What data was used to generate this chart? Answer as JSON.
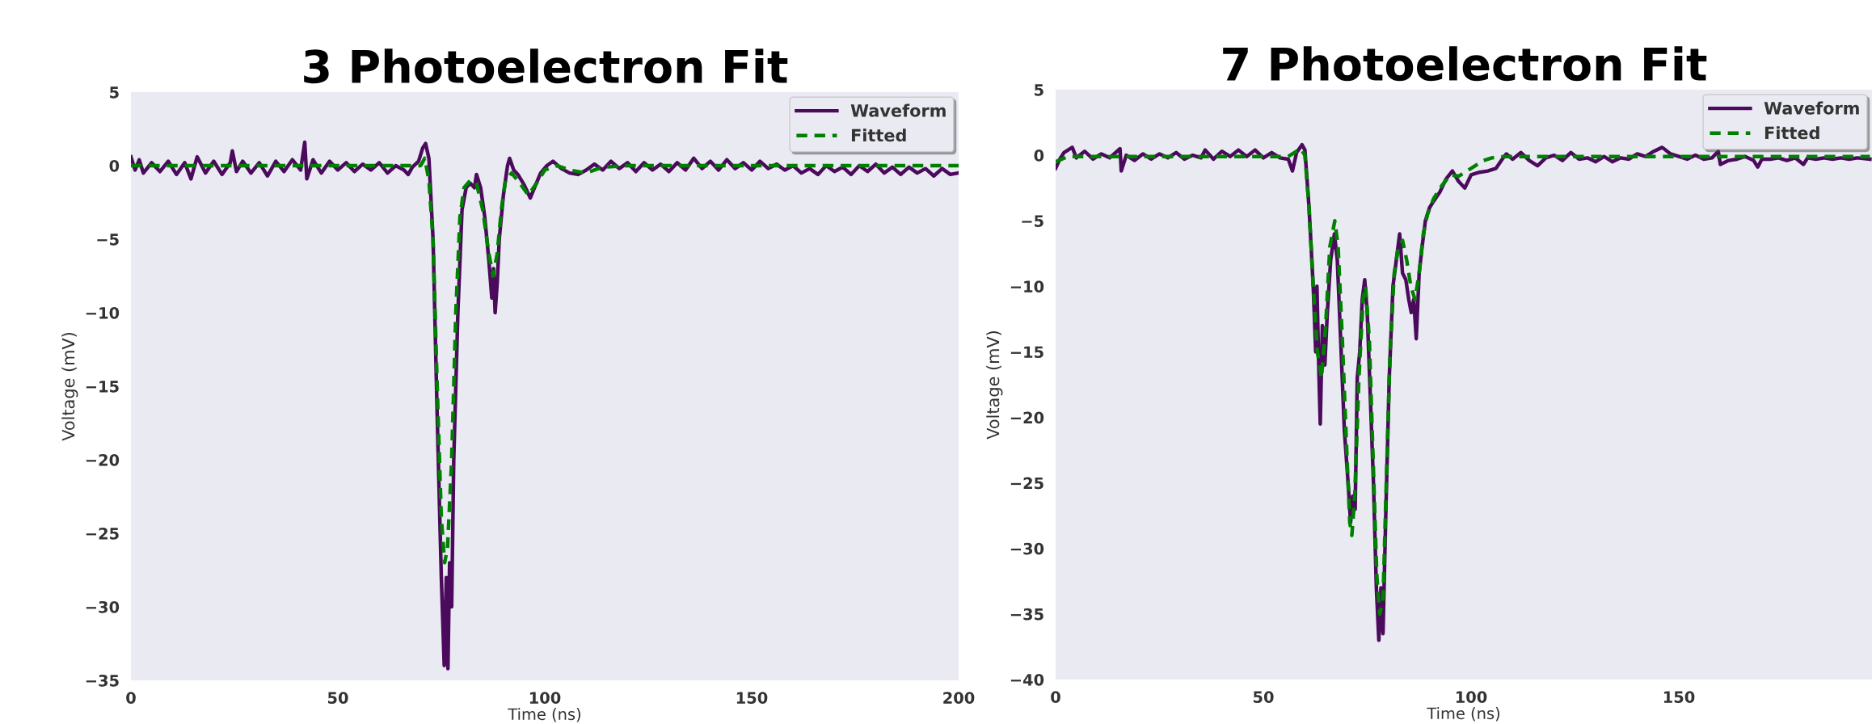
{
  "chart_data": [
    {
      "type": "line",
      "title": "3 Photoelectron Fit",
      "xlabel": "Time (ns)",
      "ylabel": "Voltage (mV)",
      "xlim": [
        0,
        200
      ],
      "ylim": [
        -35,
        5
      ],
      "xticks": [
        0,
        50,
        100,
        150,
        200
      ],
      "yticks": [
        -35,
        -30,
        -25,
        -20,
        -15,
        -10,
        -5,
        0,
        5
      ],
      "grid": false,
      "legend": "top right",
      "series": [
        {
          "name": "Waveform",
          "color": "#4b0a5c",
          "line_style": "solid",
          "x": [
            0,
            1,
            2,
            3,
            5,
            7,
            9,
            11,
            13,
            14.5,
            16,
            18,
            20,
            22,
            24,
            24.5,
            25.5,
            27,
            29,
            31,
            33,
            35,
            37,
            39,
            41,
            42,
            42.5,
            44,
            46,
            48,
            50,
            52,
            54,
            56,
            58,
            60,
            62,
            64,
            66,
            67,
            68,
            69.5,
            70.5,
            71.2,
            72,
            73,
            74,
            75,
            75.7,
            76.2,
            76.6,
            77,
            77.5,
            78,
            79,
            80,
            81,
            82,
            83,
            83.5,
            84.5,
            85.5,
            86.5,
            87.2,
            87.6,
            88,
            88.5,
            89,
            90,
            91,
            91.5,
            92.5,
            93.5,
            95,
            96.5,
            97.5,
            99,
            100.5,
            102,
            104,
            106,
            108,
            110,
            112,
            114,
            116,
            118,
            120,
            122,
            124,
            126,
            128,
            130,
            132,
            134,
            136,
            138,
            140,
            142,
            144,
            146,
            148,
            150,
            152,
            154,
            156,
            158,
            160,
            162,
            164,
            166,
            168,
            170,
            172,
            174,
            176,
            178,
            180,
            182,
            184,
            186,
            188,
            190,
            192,
            194,
            196,
            198,
            200
          ],
          "values": [
            0.6,
            -0.3,
            0.4,
            -0.5,
            0.2,
            -0.4,
            0.3,
            -0.6,
            0.2,
            -0.9,
            0.6,
            -0.5,
            0.3,
            -0.6,
            0.2,
            1.0,
            -0.4,
            0.3,
            -0.5,
            0.2,
            -0.7,
            0.3,
            -0.4,
            0.4,
            -0.3,
            1.6,
            -0.9,
            0.4,
            -0.5,
            0.3,
            -0.3,
            0.2,
            -0.4,
            0.1,
            -0.3,
            0.2,
            -0.5,
            0,
            -0.3,
            -0.6,
            -0.1,
            0.3,
            1.2,
            1.5,
            0.5,
            -5,
            -17,
            -28,
            -34,
            -28,
            -34.2,
            -27,
            -30,
            -20,
            -10,
            -3,
            -1.5,
            -1.2,
            -1.5,
            -0.6,
            -1.5,
            -3.5,
            -6.5,
            -9,
            -7,
            -10,
            -8,
            -5,
            -2,
            0,
            0.5,
            -0.3,
            -0.6,
            -1.3,
            -2.2,
            -1.5,
            -0.5,
            0,
            0.3,
            -0.2,
            -0.5,
            -0.6,
            -0.3,
            0.1,
            -0.3,
            0.3,
            -0.2,
            0.2,
            -0.4,
            0.2,
            -0.3,
            0.1,
            -0.4,
            0.2,
            -0.3,
            0.5,
            -0.2,
            0.3,
            -0.3,
            0.4,
            -0.2,
            0.2,
            -0.3,
            0.3,
            -0.2,
            0.1,
            -0.3,
            0,
            -0.5,
            -0.2,
            -0.6,
            0,
            -0.4,
            -0.1,
            -0.6,
            0,
            -0.4,
            0.1,
            -0.5,
            -0.1,
            -0.6,
            -0.1,
            -0.5,
            -0.2,
            -0.7,
            -0.2,
            -0.6,
            -0.5
          ]
        },
        {
          "name": "Fitted",
          "color": "#008000",
          "line_style": "dashed",
          "x": [
            0,
            70,
            71,
            72,
            73,
            74,
            75,
            75.8,
            76.5,
            77.5,
            78.5,
            79.5,
            80.5,
            82,
            83.5,
            85,
            86.5,
            87.5,
            88.5,
            89.5,
            90.5,
            92,
            94,
            96,
            98,
            100,
            103,
            106,
            110,
            114,
            120,
            200
          ],
          "values": [
            0,
            0,
            0.5,
            -1,
            -5,
            -15,
            -24,
            -27,
            -26,
            -20,
            -10,
            -3.5,
            -1.5,
            -1,
            -1.2,
            -3,
            -6,
            -7.5,
            -6,
            -3,
            -1,
            -0.5,
            -1.2,
            -2,
            -1.2,
            -0.3,
            0,
            -0.3,
            -0.5,
            -0.1,
            0,
            0
          ]
        }
      ]
    },
    {
      "type": "line",
      "title": "7 Photoelectron Fit",
      "xlabel": "Time (ns)",
      "ylabel": "Voltage (mV)",
      "xlim": [
        0,
        196.5
      ],
      "ylim": [
        -40,
        5
      ],
      "xticks": [
        0,
        50,
        100,
        150
      ],
      "yticks": [
        -40,
        -35,
        -30,
        -25,
        -20,
        -15,
        -10,
        -5,
        0,
        5
      ],
      "grid": false,
      "legend": "top right",
      "series": [
        {
          "name": "Waveform",
          "color": "#4b0a5c",
          "line_style": "solid",
          "x": [
            0,
            1,
            2,
            4,
            5,
            7,
            9,
            11,
            13,
            15.5,
            15.8,
            17,
            19,
            21,
            23,
            25,
            27,
            29,
            31,
            33,
            35,
            36,
            38,
            40,
            42,
            44,
            46,
            48,
            50,
            52,
            54,
            56,
            57,
            58,
            59.3,
            60,
            61,
            62,
            62.6,
            62.9,
            63.4,
            63.7,
            64.2,
            64.8,
            65.4,
            66.2,
            67.1,
            67.8,
            68.6,
            69.5,
            70.4,
            71,
            71.5,
            72.1,
            72.6,
            73.2,
            73.8,
            74.4,
            75,
            75.7,
            76.5,
            77.2,
            77.8,
            78.3,
            78.8,
            79.5,
            80.3,
            81.2,
            82,
            82.8,
            83.5,
            84.3,
            85,
            85.6,
            86.2,
            86.8,
            87.5,
            88.2,
            89,
            90,
            91,
            92.5,
            94,
            95.5,
            97,
            98.5,
            100,
            102,
            104,
            106,
            107.5,
            108.5,
            110,
            112,
            114,
            116,
            118,
            120,
            122,
            124,
            126,
            128,
            130,
            132,
            134,
            136,
            138,
            140,
            142,
            144,
            146,
            148,
            150,
            152,
            154,
            156,
            158,
            159.5,
            160,
            162,
            164,
            166,
            168,
            169,
            170,
            172,
            174,
            176,
            178,
            180,
            181,
            183,
            185,
            187,
            189,
            191,
            193,
            196
          ],
          "values": [
            -1,
            -0.3,
            0.2,
            0.6,
            -0.2,
            0.3,
            -0.3,
            0.1,
            -0.2,
            0.5,
            -1.2,
            0,
            -0.4,
            0.1,
            -0.3,
            0.1,
            -0.2,
            0.2,
            -0.3,
            0,
            -0.2,
            0.4,
            -0.3,
            0.3,
            -0.1,
            0.4,
            -0.1,
            0.4,
            -0.2,
            0.2,
            -0.2,
            -0.3,
            -1.2,
            0.2,
            0.8,
            0.4,
            -4,
            -10,
            -15,
            -10,
            -17,
            -20.5,
            -13,
            -16,
            -12,
            -8,
            -6,
            -8,
            -14,
            -21,
            -25,
            -28,
            -26,
            -27,
            -17,
            -15,
            -11,
            -9.5,
            -12,
            -18,
            -25,
            -33,
            -37,
            -33,
            -36.5,
            -27,
            -17,
            -10,
            -8,
            -6,
            -9,
            -9.5,
            -11,
            -12,
            -11,
            -14,
            -9,
            -7,
            -5,
            -4,
            -3.5,
            -2.8,
            -1.8,
            -1.2,
            -2,
            -2.5,
            -1.5,
            -1.3,
            -1.2,
            -1,
            -0.3,
            0.1,
            -0.3,
            0.2,
            -0.4,
            -0.8,
            -0.2,
            0,
            -0.4,
            0.2,
            -0.3,
            -0.2,
            -0.5,
            -0.1,
            -0.5,
            -0.2,
            -0.3,
            0.1,
            -0.1,
            0.3,
            0.6,
            0.1,
            -0.1,
            -0.3,
            0,
            -0.3,
            -0.2,
            0.3,
            -0.7,
            -0.4,
            -0.3,
            -0.1,
            -0.4,
            -0.9,
            -0.3,
            -0.3,
            -0.2,
            -0.4,
            -0.2,
            -0.7,
            -0.2,
            -0.3,
            -0.2,
            -0.3,
            -0.2,
            -0.3,
            -0.2,
            -0.3
          ]
        },
        {
          "name": "Fitted",
          "color": "#008000",
          "line_style": "dashed",
          "x": [
            0,
            3,
            56,
            59,
            60,
            61,
            62,
            63,
            64,
            65,
            66,
            67.2,
            68,
            69,
            70,
            70.8,
            71.3,
            72,
            73,
            74,
            74.6,
            75.5,
            76.5,
            77.3,
            78,
            78.8,
            79.5,
            80.5,
            81.5,
            82.5,
            83.5,
            84.5,
            85.5,
            86.5,
            87.5,
            88.5,
            89.5,
            91,
            93,
            95,
            97,
            99,
            101,
            103,
            105,
            108,
            196
          ],
          "values": [
            -0.5,
            -0.1,
            -0.1,
            0.5,
            0,
            -4,
            -10,
            -15,
            -17,
            -13,
            -7,
            -5,
            -7,
            -14,
            -22,
            -28,
            -29,
            -26,
            -17,
            -11,
            -10,
            -14,
            -24,
            -32,
            -35,
            -34,
            -26,
            -15,
            -9,
            -7,
            -6.5,
            -8,
            -10,
            -11,
            -9,
            -6,
            -4.5,
            -3.3,
            -2.3,
            -1.5,
            -1.6,
            -1.2,
            -0.8,
            -0.4,
            -0.2,
            -0.1,
            -0.1
          ]
        }
      ]
    }
  ]
}
